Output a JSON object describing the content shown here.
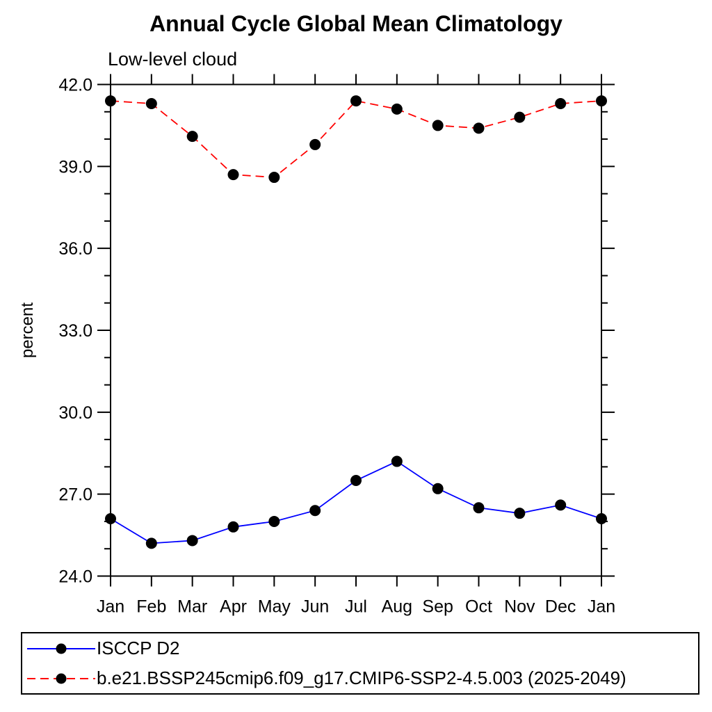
{
  "chart_data": {
    "type": "line",
    "title": "Annual Cycle Global Mean Climatology",
    "subtitle": "Low-level cloud",
    "ylabel": "percent",
    "x_categories": [
      "Jan",
      "Feb",
      "Mar",
      "Apr",
      "May",
      "Jun",
      "Jul",
      "Aug",
      "Sep",
      "Oct",
      "Nov",
      "Dec",
      "Jan"
    ],
    "ylim": [
      24.0,
      42.0
    ],
    "y_major_step": 3,
    "y_minor_step": 1,
    "y_tick_labels": [
      "24.0",
      "27.0",
      "30.0",
      "33.0",
      "36.0",
      "39.0",
      "42.0"
    ],
    "grid": false,
    "axis_color": "#000000",
    "marker_color": "#000000",
    "legend_position": "bottom-box",
    "series": [
      {
        "name": "ISCCP D2",
        "color": "#0000ff",
        "line_style": "solid",
        "values": [
          26.1,
          25.2,
          25.3,
          25.8,
          26.0,
          26.4,
          27.5,
          28.2,
          27.2,
          26.5,
          26.3,
          26.6,
          26.1
        ]
      },
      {
        "name": "b.e21.BSSP245cmip6.f09_g17.CMIP6-SSP2-4.5.003 (2025-2049)",
        "color": "#ff0000",
        "line_style": "dashed",
        "values": [
          41.4,
          41.3,
          40.1,
          38.7,
          38.6,
          39.8,
          41.4,
          41.1,
          40.5,
          40.4,
          40.8,
          41.3,
          41.4
        ]
      }
    ]
  }
}
